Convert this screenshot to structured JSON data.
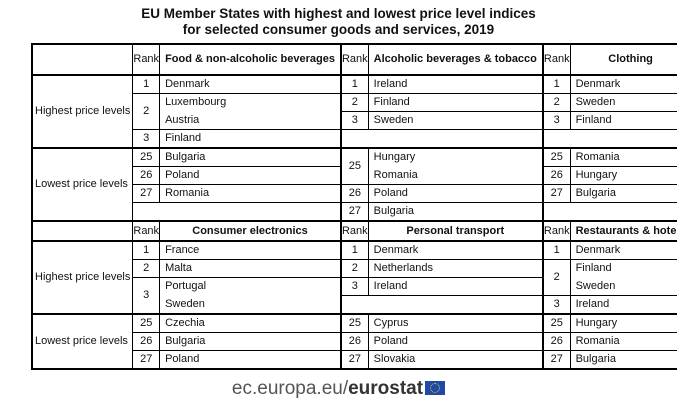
{
  "title": [
    "EU Member States with highest and lowest price level indices",
    "for selected consumer goods and services, 2019"
  ],
  "rank_label": "Rank",
  "highest": "Highest price levels",
  "lowest": "Lowest price levels",
  "cat": [
    "Food & non-alcoholic beverages",
    "Alcoholic beverages & tobacco",
    "Clothing",
    "Consumer electronics",
    "Personal transport",
    "Restaurants & hotels"
  ],
  "food": {
    "r": [
      "1",
      "2",
      "3",
      "25",
      "26",
      "27"
    ],
    "c": [
      "Denmark",
      "Luxembourg",
      "Austria",
      "Finland",
      "Bulgaria",
      "Poland",
      "Romania"
    ]
  },
  "alc": {
    "r": [
      "1",
      "2",
      "3",
      "25",
      "26",
      "27"
    ],
    "c": [
      "Ireland",
      "Finland",
      "Sweden",
      "Hungary",
      "Romania",
      "Poland",
      "Bulgaria"
    ]
  },
  "cloth": {
    "r": [
      "1",
      "2",
      "3",
      "25",
      "26",
      "27"
    ],
    "c": [
      "Denmark",
      "Sweden",
      "Finland",
      "Romania",
      "Hungary",
      "Bulgaria"
    ]
  },
  "elec": {
    "r": [
      "1",
      "2",
      "3",
      "25",
      "26",
      "27"
    ],
    "c": [
      "France",
      "Malta",
      "Portugal",
      "Sweden",
      "Czechia",
      "Bulgaria",
      "Poland"
    ]
  },
  "trans": {
    "r": [
      "1",
      "2",
      "3",
      "25",
      "26",
      "27"
    ],
    "c": [
      "Denmark",
      "Netherlands",
      "Ireland",
      "Cyprus",
      "Poland",
      "Slovakia"
    ]
  },
  "rest": {
    "r": [
      "1",
      "2",
      "3",
      "25",
      "26",
      "27"
    ],
    "c": [
      "Denmark",
      "Finland",
      "Sweden",
      "Ireland",
      "Hungary",
      "Romania",
      "Bulgaria"
    ]
  },
  "footer": {
    "domain": "ec.europa.eu/",
    "brand": "eurostat"
  }
}
